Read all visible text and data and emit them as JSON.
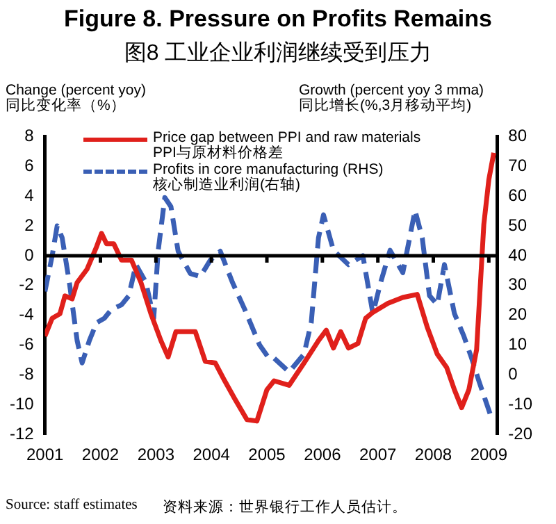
{
  "chart_data": {
    "type": "line",
    "title": "Figure 8. Pressure on Profits Remains",
    "subtitle": "图8  工业企业利润继续受到压力",
    "ylabel": "Change (percent yoy)\n同比变化率（%）",
    "y2label": "Growth (percent yoy 3 mma)\n同比增长(%,3月移动平均)",
    "xlim": [
      2001,
      2009.15
    ],
    "xticks": [
      2001,
      2002,
      2003,
      2004,
      2005,
      2006,
      2007,
      2008,
      2009
    ],
    "ylim": [
      -12,
      8
    ],
    "yticks": [
      -12,
      -10,
      -8,
      -6,
      -4,
      -2,
      0,
      2,
      4,
      6,
      8
    ],
    "y2lim": [
      -20,
      80
    ],
    "y2ticks": [
      -20,
      -10,
      0,
      10,
      20,
      30,
      40,
      50,
      60,
      70,
      80
    ],
    "grid": false,
    "legend": "top",
    "marker": "none",
    "ref_lines": [
      {
        "axis": "y",
        "value": 0,
        "color": "#000000"
      }
    ],
    "series": [
      {
        "name": "Price gap between PPI and raw materials\nPPI与原材料价格差",
        "color": "#e0201b",
        "line_style": "solid",
        "x": [
          2001.0,
          2001.13,
          2001.27,
          2001.36,
          2001.49,
          2001.58,
          2001.76,
          2001.93,
          2002.02,
          2002.11,
          2002.24,
          2002.38,
          2002.56,
          2002.73,
          2002.91,
          2003.09,
          2003.22,
          2003.36,
          2003.71,
          2003.89,
          2004.07,
          2004.24,
          2004.42,
          2004.64,
          2004.82,
          2005.0,
          2005.13,
          2005.4,
          2005.67,
          2005.93,
          2006.07,
          2006.2,
          2006.33,
          2006.47,
          2006.64,
          2006.78,
          2006.91,
          2007.18,
          2007.45,
          2007.71,
          2007.89,
          2008.07,
          2008.24,
          2008.38,
          2008.51,
          2008.64,
          2008.78,
          2008.91,
          2009.0,
          2009.09
        ],
        "values": [
          -5.4,
          -4.2,
          -3.9,
          -2.7,
          -2.9,
          -1.8,
          -0.9,
          0.6,
          1.5,
          0.8,
          0.8,
          -0.3,
          -0.3,
          -1.8,
          -3.9,
          -5.7,
          -6.8,
          -5.1,
          -5.1,
          -7.1,
          -7.2,
          -8.4,
          -9.6,
          -11.0,
          -11.1,
          -9.0,
          -8.4,
          -8.7,
          -7.2,
          -5.7,
          -5.0,
          -6.2,
          -5.1,
          -6.2,
          -5.9,
          -4.2,
          -3.8,
          -3.2,
          -2.8,
          -2.6,
          -4.8,
          -6.6,
          -7.5,
          -9.0,
          -10.2,
          -9.0,
          -6.3,
          2.1,
          5.1,
          6.9
        ]
      },
      {
        "name": "Profits in core manufacturing (RHS)\n核心制造业利润(右轴)",
        "color": "#3a5fb5",
        "line_style": "dashed",
        "axis": "y2",
        "x": [
          2001.0,
          2001.13,
          2001.22,
          2001.31,
          2001.44,
          2001.58,
          2001.67,
          2001.8,
          2001.93,
          2002.07,
          2002.2,
          2002.38,
          2002.51,
          2002.64,
          2002.82,
          2002.96,
          2003.04,
          2003.16,
          2003.27,
          2003.4,
          2003.62,
          2003.8,
          2003.98,
          2004.16,
          2004.38,
          2004.6,
          2004.87,
          2005.04,
          2005.13,
          2005.4,
          2005.67,
          2005.8,
          2005.93,
          2006.02,
          2006.2,
          2006.47,
          2006.73,
          2006.91,
          2007.05,
          2007.22,
          2007.45,
          2007.67,
          2007.8,
          2007.93,
          2008.07,
          2008.2,
          2008.38,
          2008.55,
          2008.69,
          2008.82,
          2009.04
        ],
        "values": [
          28,
          40,
          50,
          46,
          31,
          11.5,
          4,
          11.5,
          17.5,
          19,
          22,
          23.5,
          26.5,
          37,
          31,
          19,
          41.5,
          59.5,
          56.5,
          41.5,
          34,
          33,
          38.5,
          41.5,
          31,
          22,
          10,
          5.5,
          5.6,
          1,
          7,
          17.6,
          46,
          53.7,
          41.8,
          37,
          40,
          20.6,
          31,
          41.8,
          34.3,
          55.2,
          46,
          26.6,
          23.6,
          37,
          20.6,
          13,
          5.6,
          -2,
          -14
        ]
      }
    ],
    "annotations": [
      "Source: staff estimates",
      "资料来源：世界银行工作人员估计。"
    ]
  }
}
